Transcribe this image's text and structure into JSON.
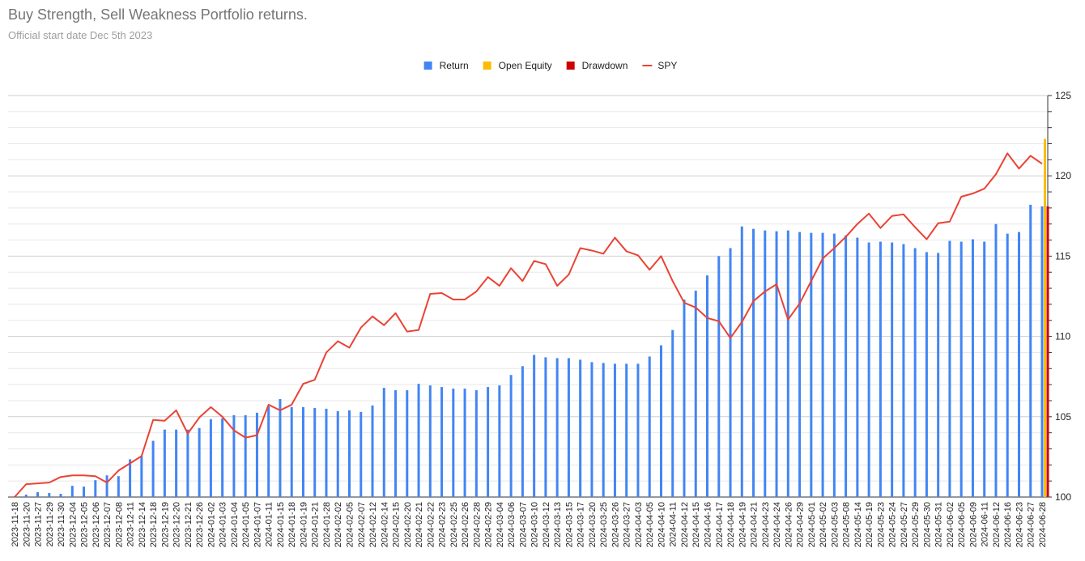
{
  "chart_data": {
    "type": "bar",
    "title": "Buy Strength, Sell Weakness Portfolio returns.",
    "subtitle": "Official start date Dec 5th 2023",
    "legend": "top",
    "grid": true,
    "ylim": [
      100,
      125
    ],
    "yticks": [
      100,
      105,
      110,
      115,
      120,
      125
    ],
    "minor_yticks": [
      101,
      102,
      103,
      104,
      106,
      107,
      108,
      109,
      111,
      112,
      113,
      114,
      116,
      117,
      118,
      119,
      121,
      122,
      123,
      124
    ],
    "categories": [
      "2023-11-18",
      "2023-11-20",
      "2023-11-27",
      "2023-11-29",
      "2023-11-30",
      "2023-12-04",
      "2023-12-05",
      "2023-12-06",
      "2023-12-07",
      "2023-12-08",
      "2023-12-11",
      "2023-12-14",
      "2023-12-18",
      "2023-12-19",
      "2023-12-20",
      "2023-12-21",
      "2023-12-26",
      "2024-01-02",
      "2024-01-03",
      "2024-01-04",
      "2024-01-05",
      "2024-01-07",
      "2024-01-11",
      "2024-01-15",
      "2024-01-18",
      "2024-01-19",
      "2024-01-21",
      "2024-01-28",
      "2024-02-02",
      "2024-02-05",
      "2024-02-07",
      "2024-02-12",
      "2024-02-14",
      "2024-02-15",
      "2024-02-20",
      "2024-02-21",
      "2024-02-22",
      "2024-02-23",
      "2024-02-25",
      "2024-02-26",
      "2024-02-28",
      "2024-02-29",
      "2024-03-04",
      "2024-03-06",
      "2024-03-07",
      "2024-03-10",
      "2024-03-12",
      "2024-03-13",
      "2024-03-15",
      "2024-03-17",
      "2024-03-20",
      "2024-03-25",
      "2024-03-26",
      "2024-03-27",
      "2024-04-03",
      "2024-04-05",
      "2024-04-10",
      "2024-04-11",
      "2024-04-12",
      "2024-04-15",
      "2024-04-16",
      "2024-04-17",
      "2024-04-18",
      "2024-04-19",
      "2024-04-21",
      "2024-04-23",
      "2024-04-24",
      "2024-04-26",
      "2024-04-29",
      "2024-05-01",
      "2024-05-02",
      "2024-05-03",
      "2024-05-08",
      "2024-05-14",
      "2024-05-19",
      "2024-05-23",
      "2024-05-24",
      "2024-05-27",
      "2024-05-29",
      "2024-05-30",
      "2024-05-31",
      "2024-06-02",
      "2024-06-05",
      "2024-06-09",
      "2024-06-11",
      "2024-06-12",
      "2024-06-16",
      "2024-06-23",
      "2024-06-27",
      "2024-06-28"
    ],
    "series": [
      {
        "name": "Return",
        "type": "bar",
        "color": "#4285f4",
        "values": [
          100,
          100.15,
          100.3,
          100.25,
          100.2,
          100.7,
          100.65,
          101.05,
          101.35,
          101.3,
          102.35,
          102.55,
          103.5,
          104.2,
          104.2,
          104.2,
          104.3,
          104.85,
          104.9,
          105.1,
          105.1,
          105.25,
          105.65,
          106.1,
          105.6,
          105.6,
          105.55,
          105.5,
          105.35,
          105.4,
          105.3,
          105.7,
          106.8,
          106.65,
          106.65,
          107.05,
          106.95,
          106.85,
          106.75,
          106.75,
          106.65,
          106.85,
          106.95,
          107.6,
          108.15,
          108.85,
          108.7,
          108.65,
          108.65,
          108.55,
          108.4,
          108.35,
          108.3,
          108.3,
          108.3,
          108.75,
          109.45,
          110.4,
          112.3,
          112.85,
          113.8,
          115.0,
          115.5,
          116.85,
          116.7,
          116.6,
          116.55,
          116.6,
          116.5,
          116.45,
          116.45,
          116.4,
          116.3,
          116.15,
          115.85,
          115.9,
          115.85,
          115.75,
          115.5,
          115.25,
          115.2,
          115.95,
          115.9,
          116.05,
          115.9,
          117.0,
          116.4,
          116.5,
          118.2,
          118.1
        ]
      },
      {
        "name": "Open Equity",
        "type": "bar",
        "color": "#fbbc04",
        "values": [
          null,
          null,
          null,
          null,
          null,
          null,
          null,
          null,
          null,
          null,
          null,
          null,
          null,
          null,
          null,
          null,
          null,
          null,
          null,
          null,
          null,
          null,
          null,
          null,
          null,
          null,
          null,
          null,
          null,
          null,
          null,
          null,
          null,
          null,
          null,
          null,
          null,
          null,
          null,
          null,
          null,
          null,
          null,
          null,
          null,
          null,
          null,
          null,
          null,
          null,
          null,
          null,
          null,
          null,
          null,
          null,
          null,
          null,
          null,
          null,
          null,
          null,
          null,
          null,
          null,
          null,
          null,
          null,
          null,
          null,
          null,
          null,
          null,
          null,
          null,
          null,
          null,
          null,
          null,
          null,
          null,
          null,
          null,
          null,
          null,
          null,
          null,
          null,
          null,
          122.3
        ]
      },
      {
        "name": "Drawdown",
        "type": "bar",
        "color": "#cc0000",
        "values": [
          null,
          null,
          null,
          null,
          null,
          null,
          null,
          null,
          null,
          null,
          null,
          null,
          null,
          null,
          null,
          null,
          null,
          null,
          null,
          null,
          null,
          null,
          null,
          null,
          null,
          null,
          null,
          null,
          null,
          null,
          null,
          null,
          null,
          null,
          null,
          null,
          null,
          null,
          null,
          null,
          null,
          null,
          null,
          null,
          null,
          null,
          null,
          null,
          null,
          null,
          null,
          null,
          null,
          null,
          null,
          null,
          null,
          null,
          null,
          null,
          null,
          null,
          null,
          null,
          null,
          null,
          null,
          null,
          null,
          null,
          null,
          null,
          null,
          null,
          null,
          null,
          null,
          null,
          null,
          null,
          null,
          null,
          null,
          null,
          null,
          null,
          null,
          null,
          null,
          118.1
        ]
      },
      {
        "name": "SPY",
        "type": "line",
        "color": "#ea4335",
        "values": [
          100,
          100.8,
          100.85,
          100.9,
          101.25,
          101.35,
          101.35,
          101.3,
          100.9,
          101.65,
          102.1,
          102.55,
          104.8,
          104.75,
          105.4,
          103.95,
          104.95,
          105.6,
          105.0,
          104.15,
          103.7,
          103.85,
          105.75,
          105.4,
          105.75,
          107.05,
          107.3,
          109.0,
          109.7,
          109.3,
          110.55,
          111.25,
          110.7,
          111.45,
          110.3,
          110.4,
          112.65,
          112.7,
          112.3,
          112.3,
          112.8,
          113.7,
          113.15,
          114.25,
          113.45,
          114.7,
          114.5,
          113.15,
          113.85,
          115.5,
          115.35,
          115.15,
          116.15,
          115.3,
          115.05,
          114.15,
          115.0,
          113.45,
          112.1,
          111.8,
          111.15,
          110.95,
          109.9,
          110.9,
          112.2,
          112.8,
          113.25,
          111.05,
          112.05,
          113.45,
          114.85,
          115.5,
          116.2,
          117.0,
          117.65,
          116.75,
          117.5,
          117.6,
          116.8,
          116.05,
          117.05,
          117.15,
          118.7,
          118.9,
          119.2,
          120.1,
          121.4,
          120.45,
          121.25,
          120.75
        ]
      }
    ]
  }
}
